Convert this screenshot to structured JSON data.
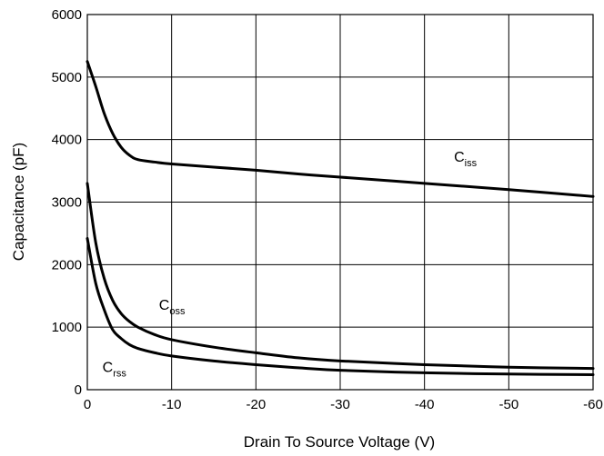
{
  "chart_data": {
    "type": "line",
    "title": "",
    "xlabel": "Drain To Source Voltage (V)",
    "ylabel": "Capacitance (pF)",
    "xlim": [
      0,
      -60
    ],
    "ylim": [
      0,
      6000
    ],
    "x_ticks": [
      0,
      -10,
      -20,
      -30,
      -40,
      -50,
      -60
    ],
    "y_ticks": [
      0,
      1000,
      2000,
      3000,
      4000,
      5000,
      6000
    ],
    "x_tick_labels": [
      "0",
      "-10",
      "-20",
      "-30",
      "-40",
      "-50",
      "-60"
    ],
    "y_tick_labels": [
      "0",
      "1000",
      "2000",
      "3000",
      "4000",
      "5000",
      "6000"
    ],
    "grid": true,
    "series": [
      {
        "name": "Ciss",
        "label_main": "C",
        "label_sub": "iss",
        "x": [
          0,
          -1,
          -2,
          -3,
          -4,
          -5,
          -6,
          -8,
          -10,
          -15,
          -20,
          -25,
          -30,
          -40,
          -50,
          -60
        ],
        "y": [
          5250,
          4850,
          4420,
          4100,
          3880,
          3750,
          3680,
          3640,
          3610,
          3560,
          3510,
          3450,
          3400,
          3300,
          3200,
          3090
        ]
      },
      {
        "name": "Coss",
        "label_main": "C",
        "label_sub": "oss",
        "x": [
          0,
          -1,
          -2,
          -3,
          -4,
          -5,
          -6,
          -8,
          -10,
          -15,
          -20,
          -25,
          -30,
          -40,
          -50,
          -60
        ],
        "y": [
          3300,
          2350,
          1780,
          1430,
          1220,
          1090,
          1000,
          880,
          800,
          680,
          590,
          510,
          460,
          400,
          360,
          340
        ]
      },
      {
        "name": "Crss",
        "label_main": "C",
        "label_sub": "rss",
        "x": [
          0,
          -1,
          -2,
          -3,
          -4,
          -5,
          -6,
          -8,
          -10,
          -15,
          -20,
          -25,
          -30,
          -40,
          -50,
          -60
        ],
        "y": [
          2420,
          1700,
          1280,
          960,
          820,
          720,
          660,
          590,
          540,
          460,
          400,
          350,
          310,
          270,
          250,
          240
        ]
      }
    ],
    "label_anchors": [
      {
        "series": "Ciss",
        "x": -43.5,
        "y": 3650
      },
      {
        "series": "Coss",
        "x": -8.5,
        "y": 1280
      },
      {
        "series": "Crss",
        "x": -1.8,
        "y": 280
      }
    ]
  }
}
